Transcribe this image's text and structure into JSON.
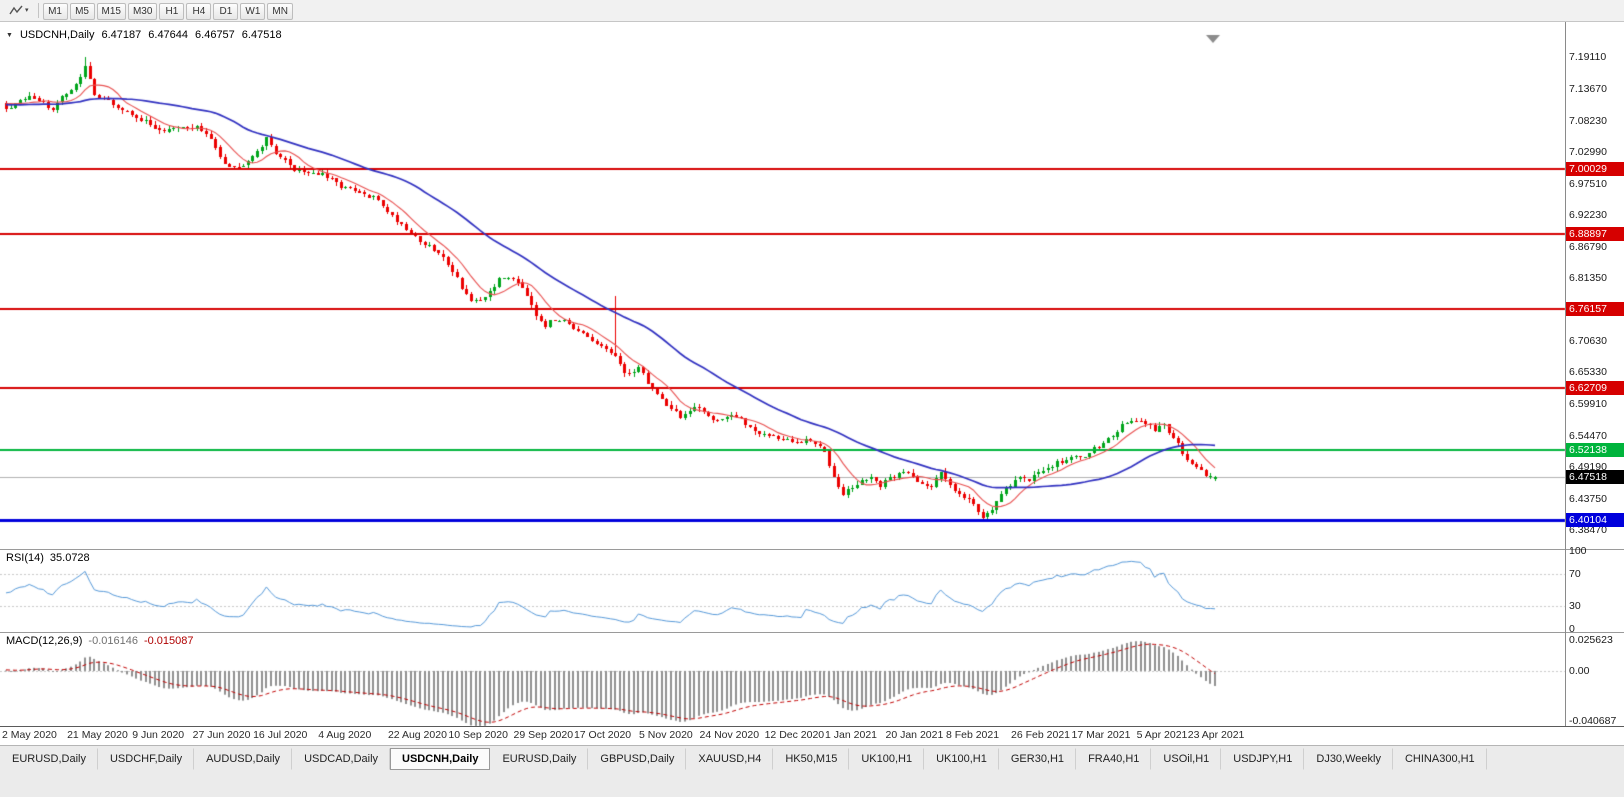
{
  "icons": {
    "one_click_arrow": "▼",
    "dropdown_caret": "▾"
  },
  "toolbar": {
    "timeframes": [
      "M1",
      "M5",
      "M15",
      "M30",
      "H1",
      "H4",
      "D1",
      "W1",
      "MN"
    ]
  },
  "chart": {
    "symbol_label": "USDCNH,Daily",
    "ohlc": {
      "open": "6.47187",
      "high": "6.47644",
      "low": "6.46757",
      "close": "6.47518"
    }
  },
  "chart_data": {
    "type": "candlestick",
    "title": "USDCNH,Daily",
    "symbol": "USDCNH",
    "timeframe": "Daily",
    "ylim": [
      6.3523,
      7.2508
    ],
    "candle_count": 261,
    "last_candle": {
      "open": 6.47187,
      "high": 6.47644,
      "low": 6.46757,
      "close": 6.47518
    },
    "colors": {
      "candle_up": "#00A51B",
      "candle_down": "#EB0000"
    },
    "price_axis_ticks": [
      {
        "label": "7.19110",
        "value": 7.1911
      },
      {
        "label": "7.13670",
        "value": 7.1367
      },
      {
        "label": "7.08230",
        "value": 7.0823
      },
      {
        "label": "7.02990",
        "value": 7.0299
      },
      {
        "label": "6.97510",
        "value": 6.9751
      },
      {
        "label": "6.92230",
        "value": 6.9223
      },
      {
        "label": "6.86790",
        "value": 6.8679
      },
      {
        "label": "6.81350",
        "value": 6.8135
      },
      {
        "label": "6.76030",
        "value": 6.7603
      },
      {
        "label": "6.70630",
        "value": 6.7063
      },
      {
        "label": "6.65330",
        "value": 6.6533
      },
      {
        "label": "6.59910",
        "value": 6.5991
      },
      {
        "label": "6.54470",
        "value": 6.5447
      },
      {
        "label": "6.49190",
        "value": 6.4919
      },
      {
        "label": "6.43750",
        "value": 6.4375
      },
      {
        "label": "6.38470",
        "value": 6.3847
      }
    ],
    "date_labels": [
      {
        "label": "2 May 2020",
        "index": 0
      },
      {
        "label": "21 May 2020",
        "index": 14
      },
      {
        "label": "9 Jun 2020",
        "index": 28
      },
      {
        "label": "27 Jun 2020",
        "index": 41
      },
      {
        "label": "16 Jul 2020",
        "index": 54
      },
      {
        "label": "4 Aug 2020",
        "index": 68
      },
      {
        "label": "22 Aug 2020",
        "index": 83
      },
      {
        "label": "10 Sep 2020",
        "index": 96
      },
      {
        "label": "29 Sep 2020",
        "index": 110
      },
      {
        "label": "17 Oct 2020",
        "index": 123
      },
      {
        "label": "5 Nov 2020",
        "index": 137
      },
      {
        "label": "24 Nov 2020",
        "index": 150
      },
      {
        "label": "12 Dec 2020",
        "index": 164
      },
      {
        "label": "1 Jan 2021",
        "index": 177
      },
      {
        "label": "20 Jan 2021",
        "index": 190
      },
      {
        "label": "8 Feb 2021",
        "index": 203
      },
      {
        "label": "26 Feb 2021",
        "index": 217
      },
      {
        "label": "17 Mar 2021",
        "index": 230
      },
      {
        "label": "5 Apr 2021",
        "index": 244
      },
      {
        "label": "23 Apr 2021",
        "index": 255
      }
    ],
    "horizontal_lines": [
      {
        "price": 7.00029,
        "label": "7.00029",
        "color": "#D60000",
        "width": 2,
        "type": "resistance"
      },
      {
        "price": 6.88897,
        "label": "6.88897",
        "color": "#D60000",
        "width": 2,
        "type": "resistance"
      },
      {
        "price": 6.76157,
        "label": "6.76157",
        "color": "#D60000",
        "width": 2,
        "type": "resistance"
      },
      {
        "price": 6.62709,
        "label": "6.62709",
        "color": "#D60000",
        "width": 2,
        "type": "resistance"
      },
      {
        "price": 6.52138,
        "label": "6.52138",
        "color": "#00B43C",
        "width": 2,
        "type": "support"
      },
      {
        "price": 6.40104,
        "label": "6.40104",
        "color": "#0000DC",
        "width": 3,
        "type": "support"
      }
    ],
    "current_price": {
      "value": 6.47518,
      "label": "6.47518",
      "badge_color": "#000000"
    },
    "moving_averages": [
      {
        "period": 8,
        "color": "#E85050"
      },
      {
        "period": 34,
        "color": "#3030C0"
      }
    ],
    "indicators": {
      "rsi": {
        "name": "RSI(14)",
        "period": 14,
        "value": "35.0728",
        "color": "#5598D8",
        "levels": [
          100,
          70,
          30,
          0
        ],
        "level_lines": [
          70,
          30
        ]
      },
      "macd": {
        "name": "MACD(12,26,9)",
        "fast": 12,
        "slow": 26,
        "signal": 9,
        "main_value": "-0.016146",
        "signal_value": "-0.015087",
        "histogram_color": "#909090",
        "signal_color": "#C00000",
        "axis_ticks": [
          {
            "label": "0.025623",
            "value": 0.025623
          },
          {
            "label": "0.00",
            "value": 0
          },
          {
            "label": "-0.040687",
            "value": -0.040687
          }
        ]
      }
    },
    "price_path_anchors": [
      [
        0,
        7.105
      ],
      [
        6,
        7.125
      ],
      [
        10,
        7.1
      ],
      [
        13,
        7.13
      ],
      [
        16,
        7.155
      ],
      [
        17,
        7.175
      ],
      [
        19,
        7.13
      ],
      [
        22,
        7.115
      ],
      [
        25,
        7.1
      ],
      [
        28,
        7.09
      ],
      [
        31,
        7.075
      ],
      [
        34,
        7.065
      ],
      [
        38,
        7.07
      ],
      [
        41,
        7.072
      ],
      [
        44,
        7.05
      ],
      [
        47,
        7.012
      ],
      [
        50,
        7.002
      ],
      [
        53,
        7.025
      ],
      [
        56,
        7.05
      ],
      [
        59,
        7.02
      ],
      [
        62,
        7.0
      ],
      [
        65,
        6.995
      ],
      [
        68,
        6.99
      ],
      [
        71,
        6.975
      ],
      [
        74,
        6.965
      ],
      [
        77,
        6.955
      ],
      [
        80,
        6.947
      ],
      [
        83,
        6.92
      ],
      [
        86,
        6.9
      ],
      [
        89,
        6.878
      ],
      [
        92,
        6.862
      ],
      [
        95,
        6.84
      ],
      [
        98,
        6.8
      ],
      [
        100,
        6.775
      ],
      [
        102,
        6.772
      ],
      [
        104,
        6.792
      ],
      [
        106,
        6.81
      ],
      [
        108,
        6.818
      ],
      [
        110,
        6.81
      ],
      [
        112,
        6.788
      ],
      [
        114,
        6.753
      ],
      [
        116,
        6.735
      ],
      [
        118,
        6.742
      ],
      [
        120,
        6.747
      ],
      [
        123,
        6.722
      ],
      [
        126,
        6.705
      ],
      [
        129,
        6.693
      ],
      [
        131,
        6.682
      ],
      [
        133,
        6.648
      ],
      [
        136,
        6.662
      ],
      [
        139,
        6.625
      ],
      [
        142,
        6.6
      ],
      [
        145,
        6.578
      ],
      [
        148,
        6.592
      ],
      [
        150,
        6.585
      ],
      [
        153,
        6.572
      ],
      [
        156,
        6.582
      ],
      [
        159,
        6.565
      ],
      [
        162,
        6.552
      ],
      [
        164,
        6.546
      ],
      [
        167,
        6.54
      ],
      [
        170,
        6.532
      ],
      [
        173,
        6.537
      ],
      [
        176,
        6.518
      ],
      [
        178,
        6.478
      ],
      [
        180,
        6.448
      ],
      [
        183,
        6.462
      ],
      [
        186,
        6.477
      ],
      [
        188,
        6.458
      ],
      [
        190,
        6.472
      ],
      [
        193,
        6.486
      ],
      [
        196,
        6.471
      ],
      [
        199,
        6.458
      ],
      [
        201,
        6.482
      ],
      [
        203,
        6.462
      ],
      [
        206,
        6.443
      ],
      [
        208,
        6.428
      ],
      [
        210,
        6.408
      ],
      [
        212,
        6.422
      ],
      [
        214,
        6.443
      ],
      [
        216,
        6.462
      ],
      [
        218,
        6.477
      ],
      [
        220,
        6.47
      ],
      [
        223,
        6.487
      ],
      [
        226,
        6.5
      ],
      [
        229,
        6.506
      ],
      [
        232,
        6.512
      ],
      [
        235,
        6.53
      ],
      [
        238,
        6.547
      ],
      [
        241,
        6.568
      ],
      [
        243,
        6.572
      ],
      [
        245,
        6.562
      ],
      [
        247,
        6.556
      ],
      [
        249,
        6.562
      ],
      [
        251,
        6.545
      ],
      [
        253,
        6.515
      ],
      [
        255,
        6.497
      ],
      [
        257,
        6.483
      ],
      [
        259,
        6.476
      ],
      [
        260,
        6.475
      ]
    ]
  },
  "tabs": [
    {
      "label": "EURUSD,Daily",
      "active": false
    },
    {
      "label": "USDCHF,Daily",
      "active": false
    },
    {
      "label": "AUDUSD,Daily",
      "active": false
    },
    {
      "label": "USDCAD,Daily",
      "active": false
    },
    {
      "label": "USDCNH,Daily",
      "active": true
    },
    {
      "label": "EURUSD,Daily",
      "active": false
    },
    {
      "label": "GBPUSD,Daily",
      "active": false
    },
    {
      "label": "XAUUSD,H4",
      "active": false
    },
    {
      "label": "HK50,M15",
      "active": false
    },
    {
      "label": "UK100,H1",
      "active": false
    },
    {
      "label": "UK100,H1",
      "active": false
    },
    {
      "label": "GER30,H1",
      "active": false
    },
    {
      "label": "FRA40,H1",
      "active": false
    },
    {
      "label": "USOil,H1",
      "active": false
    },
    {
      "label": "USDJPY,H1",
      "active": false
    },
    {
      "label": "DJ30,Weekly",
      "active": false
    },
    {
      "label": "CHINA300,H1",
      "active": false
    }
  ]
}
